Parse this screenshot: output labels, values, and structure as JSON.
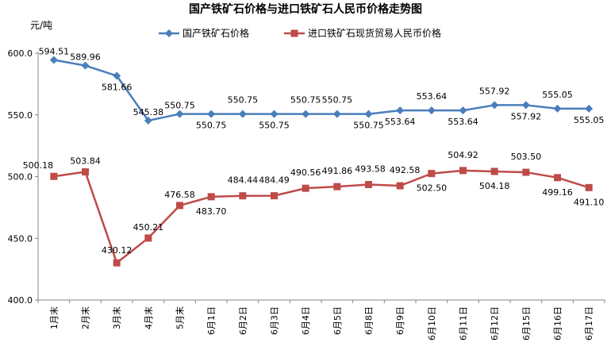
{
  "chart_data": {
    "type": "line",
    "title": "国产铁矿石价格与进口铁矿石人民币价格走势图",
    "ylabel": "元/吨",
    "xlabel": "",
    "ylim": [
      400,
      600
    ],
    "yticks": [
      "400.0",
      "450.0",
      "500.0",
      "550.0",
      "600.0"
    ],
    "grid": false,
    "legend_placement": "top",
    "categories": [
      "1月末",
      "2月末",
      "3月末",
      "4月末",
      "5月末",
      "6月1日",
      "6月2日",
      "6月3日",
      "6月4日",
      "6月5日",
      "6月8日",
      "6月9日",
      "6月10日",
      "6月11日",
      "6月12日",
      "6月15日",
      "6月16日",
      "6月17日"
    ],
    "series": [
      {
        "name": "国产铁矿石价格",
        "color": "#4A7EBB",
        "marker": "diamond",
        "values": [
          594.51,
          589.96,
          581.66,
          545.38,
          550.75,
          550.75,
          550.75,
          550.75,
          550.75,
          550.75,
          550.75,
          553.64,
          553.64,
          553.64,
          557.92,
          557.92,
          555.05,
          555.05
        ],
        "labels": [
          "594.51",
          "589.96",
          "581.66",
          "545.38",
          "550.75",
          "550.75",
          "550.75",
          "550.75",
          "550.75",
          "550.75",
          "550.75",
          "553.64",
          "553.64",
          "553.64",
          "557.92",
          "557.92",
          "555.05",
          "555.05"
        ]
      },
      {
        "name": "进口铁矿石现货贸易人民币价格",
        "color": "#BE4B48",
        "marker": "square",
        "values": [
          500.18,
          503.84,
          430.12,
          450.21,
          476.58,
          483.7,
          484.44,
          484.49,
          490.56,
          491.86,
          493.58,
          492.58,
          502.5,
          504.92,
          504.18,
          503.5,
          499.16,
          491.1
        ],
        "labels": [
          "500.18",
          "503.84",
          "430.12",
          "450.21",
          "476.58",
          "483.70",
          "484.44",
          "484.49",
          "490.56",
          "491.86",
          "493.58",
          "492.58",
          "502.50",
          "504.92",
          "504.18",
          "503.50",
          "499.16",
          "491.10"
        ]
      }
    ]
  }
}
